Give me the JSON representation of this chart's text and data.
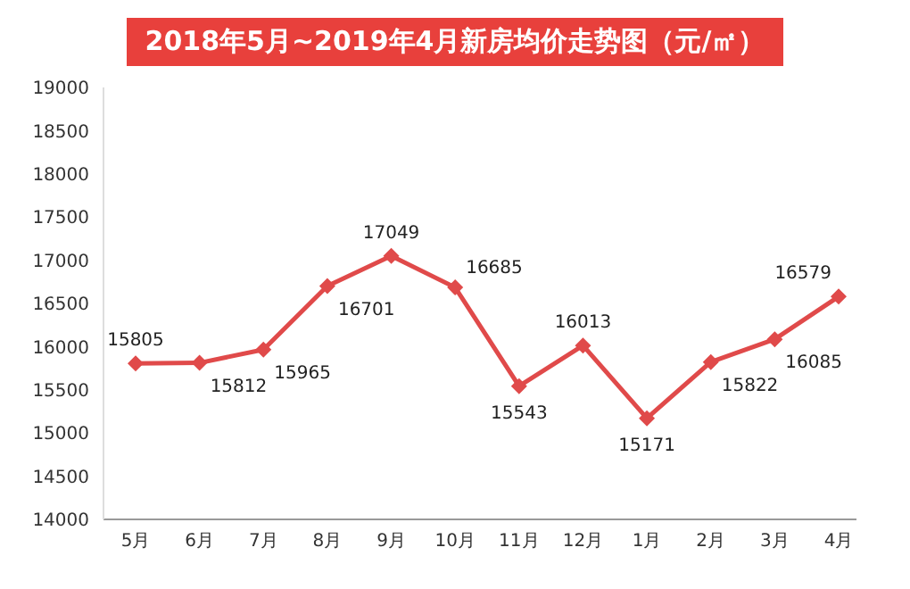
{
  "chart_data": {
    "type": "line",
    "title": "2018年5月~2019年4月新房均价走势图（元/㎡）",
    "categories": [
      "5月",
      "6月",
      "7月",
      "8月",
      "9月",
      "10月",
      "11月",
      "12月",
      "1月",
      "2月",
      "3月",
      "4月"
    ],
    "series": [
      {
        "color": "#e04a4a",
        "values": [
          15805,
          15812,
          15965,
          16701,
          17049,
          16685,
          15543,
          16013,
          15171,
          15822,
          16085,
          16579
        ]
      }
    ],
    "ylim": [
      14000,
      19000
    ],
    "yticks": [
      14000,
      14500,
      15000,
      15500,
      16000,
      16500,
      17000,
      17500,
      18000,
      18500,
      19000
    ],
    "grid": false,
    "legend": false,
    "marker": "diamond",
    "line_style": "solid",
    "data_labels": true
  }
}
